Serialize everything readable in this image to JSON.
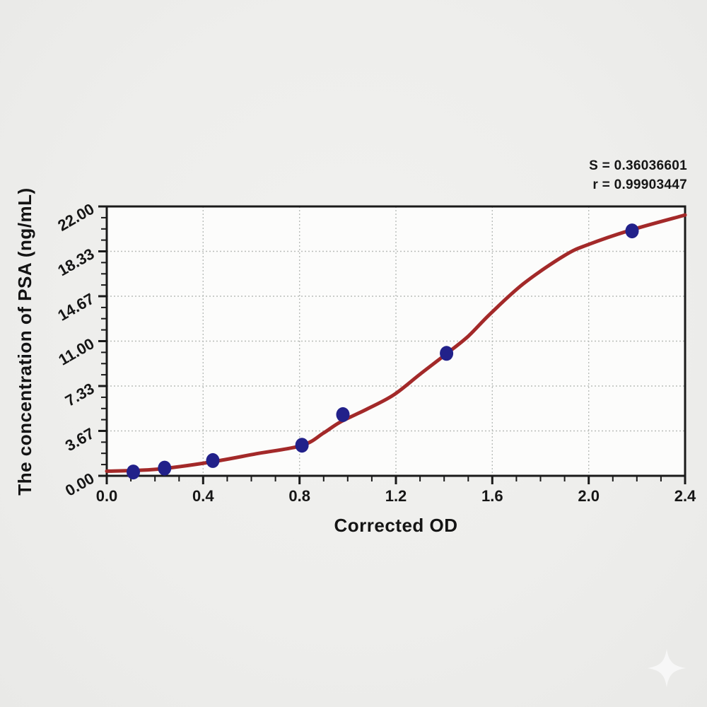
{
  "chart_data": {
    "type": "scatter",
    "title": "",
    "xlabel": "Corrected OD",
    "ylabel": "The concentration of PSA (ng/mL)",
    "xlim": [
      0,
      2.4
    ],
    "ylim": [
      0,
      22
    ],
    "grid": {
      "show": true,
      "style": "dotted",
      "position": "major-ticks-only"
    },
    "legend": {
      "show": false
    },
    "x_ticks": {
      "values": [
        0,
        0.4,
        0.8,
        1.2,
        1.6,
        2.0,
        2.4
      ],
      "labels": [
        "0.0",
        "0.4",
        "0.8",
        "1.2",
        "1.6",
        "2.0",
        "2.4"
      ],
      "minor_divisions": 4
    },
    "y_ticks": {
      "values": [
        0,
        3.6667,
        7.3333,
        11,
        14.6667,
        18.3333,
        22
      ],
      "labels": [
        "0.00",
        "3.67",
        "7.33",
        "11.00",
        "14.67",
        "18.33",
        "22.00"
      ],
      "minor_divisions": 4,
      "label_rotation_deg": -30
    },
    "series": [
      {
        "name": "standard-points",
        "type": "scatter",
        "marker": "circle",
        "points": [
          {
            "od": 0.11,
            "conc": 0.31
          },
          {
            "od": 0.24,
            "conc": 0.63
          },
          {
            "od": 0.44,
            "conc": 1.25
          },
          {
            "od": 0.81,
            "conc": 2.5
          },
          {
            "od": 0.98,
            "conc": 5.0
          },
          {
            "od": 1.41,
            "conc": 10.0
          },
          {
            "od": 2.18,
            "conc": 20.0
          }
        ]
      },
      {
        "name": "fitted-curve",
        "type": "line",
        "samples": [
          [
            0.0,
            0.38
          ],
          [
            0.12,
            0.44
          ],
          [
            0.24,
            0.6
          ],
          [
            0.44,
            1.15
          ],
          [
            0.62,
            1.8
          ],
          [
            0.81,
            2.48
          ],
          [
            0.9,
            3.5
          ],
          [
            0.97,
            4.4
          ],
          [
            1.08,
            5.45
          ],
          [
            1.19,
            6.6
          ],
          [
            1.3,
            8.3
          ],
          [
            1.41,
            9.97
          ],
          [
            1.5,
            11.4
          ],
          [
            1.59,
            13.2
          ],
          [
            1.73,
            15.7
          ],
          [
            1.9,
            18.0
          ],
          [
            2.0,
            18.9
          ],
          [
            2.18,
            20.1
          ],
          [
            2.4,
            21.3
          ]
        ]
      }
    ],
    "annotations": [
      "S = 0.36036601",
      "r = 0.99903447"
    ],
    "stats": {
      "S": "0.36036601",
      "r": "0.99903447"
    }
  },
  "colors": {
    "curve": "#a32929",
    "marker": "#22218a",
    "axis": "#1a1a1a",
    "text": "#161616",
    "grid": "#b9bdba",
    "plot_background": "#fcfcfb",
    "watermark": "#fafafa"
  }
}
